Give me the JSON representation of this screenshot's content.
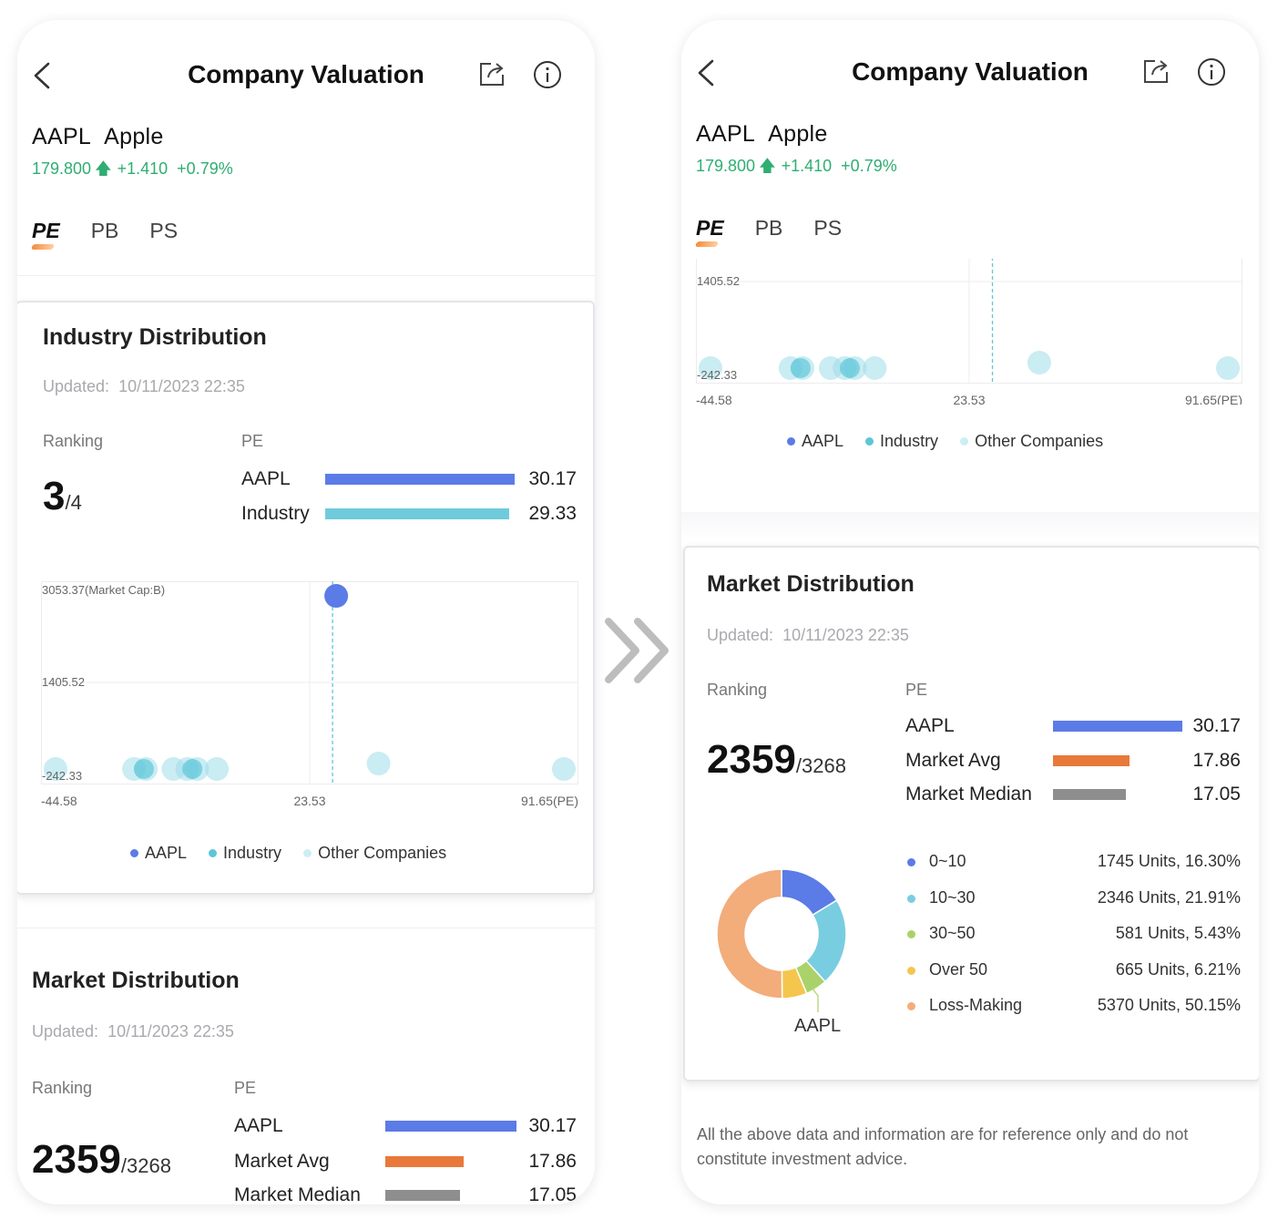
{
  "header": {
    "title": "Company Valuation",
    "back_icon": "chevron-left-icon",
    "share_icon": "share-icon",
    "info_icon": "info-icon"
  },
  "stock": {
    "ticker": "AAPL",
    "name": "Apple",
    "price": "179.800",
    "change": "+1.410",
    "change_pct": "+0.79%",
    "direction_icon": "arrow-up-icon"
  },
  "tabs": [
    {
      "label": "PE",
      "active": true
    },
    {
      "label": "PB",
      "active": false
    },
    {
      "label": "PS",
      "active": false
    }
  ],
  "industry": {
    "title": "Industry Distribution",
    "updated_label": "Updated:",
    "updated_value": "10/11/2023 22:35",
    "ranking_label": "Ranking",
    "rank": "3",
    "rank_total": "/4",
    "metric_label": "PE",
    "bars": [
      {
        "name": "AAPL",
        "value": "30.17",
        "num": 30.17,
        "color": "#5b7be6"
      },
      {
        "name": "Industry",
        "value": "29.33",
        "num": 29.33,
        "color": "#6fcbdb"
      }
    ]
  },
  "chart_data": {
    "type": "scatter",
    "y_tick_labels": [
      "3053.37(Market Cap:B)",
      "1405.52",
      "-242.33"
    ],
    "x_tick_labels": [
      "-44.58",
      "23.53",
      "91.65(PE)"
    ],
    "xlim": [
      -44.58,
      91.65
    ],
    "ylim": [
      -242.33,
      3053.37
    ],
    "aapl_x": 30.17,
    "industry_x": 29.33,
    "legend": [
      {
        "label": "AAPL",
        "color": "#5b7be6"
      },
      {
        "label": "Industry",
        "color": "#5ec5d8"
      },
      {
        "label": "Other Companies",
        "color": "#cdeef4"
      }
    ],
    "series": [
      {
        "name": "AAPL",
        "points": [
          [
            30.17,
            3053.37
          ]
        ]
      },
      {
        "name": "Other Companies",
        "points": [
          [
            -44.58,
            -242.33
          ],
          [
            -21.0,
            -242.33
          ],
          [
            -18.0,
            -242.33
          ],
          [
            -11.0,
            -242.33
          ],
          [
            -7.5,
            -242.33
          ],
          [
            -5.0,
            -242.33
          ],
          [
            0.0,
            -242.33
          ],
          [
            41.0,
            -10.0
          ],
          [
            91.65,
            -242.33
          ]
        ]
      }
    ],
    "grid": true
  },
  "market": {
    "title": "Market Distribution",
    "updated_label": "Updated:",
    "updated_value": "10/11/2023 22:35",
    "ranking_label": "Ranking",
    "rank": "2359",
    "rank_total": "/3268",
    "metric_label": "PE",
    "bars": [
      {
        "name": "AAPL",
        "value": "30.17",
        "num": 30.17,
        "color": "#5b7be6"
      },
      {
        "name": "Market Avg",
        "value": "17.86",
        "num": 17.86,
        "color": "#e8793a"
      },
      {
        "name": "Market Median",
        "value": "17.05",
        "num": 17.05,
        "color": "#8e8e8e"
      }
    ],
    "distribution": [
      {
        "range": "0~10",
        "stat": "1745 Units, 16.30%",
        "pct": 16.3,
        "color": "#5b7be6"
      },
      {
        "range": "10~30",
        "stat": "2346 Units, 21.91%",
        "pct": 21.91,
        "color": "#79cde0"
      },
      {
        "range": "30~50",
        "stat": "581 Units, 5.43%",
        "pct": 5.43,
        "color": "#a9d36a"
      },
      {
        "range": "Over 50",
        "stat": "665 Units, 6.21%",
        "pct": 6.21,
        "color": "#f5c64e"
      },
      {
        "range": "Loss-Making",
        "stat": "5370 Units, 50.15%",
        "pct": 50.15,
        "color": "#f2ad7b"
      }
    ],
    "donut_label": "AAPL"
  },
  "disclaimer": "All the above data and information are for reference only and do not constitute investment advice.",
  "transition_icon": "double-chevron-right-icon"
}
